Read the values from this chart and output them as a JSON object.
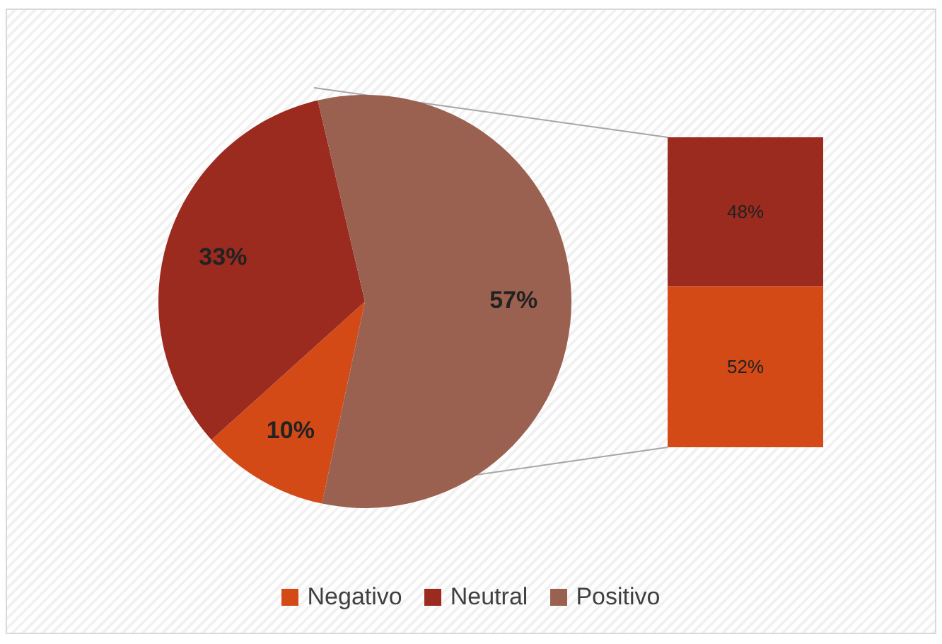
{
  "chart_data": [
    {
      "type": "pie",
      "categories": [
        "Negativo",
        "Neutral",
        "Positivo"
      ],
      "values": [
        10,
        33,
        57
      ],
      "colors": [
        "#d34a17",
        "#9b2a1f",
        "#9a6150"
      ],
      "value_labels": [
        "10%",
        "33%",
        "57%"
      ],
      "legend": "bottom"
    },
    {
      "type": "bar",
      "categories": [
        null
      ],
      "stacked": true,
      "series": [
        {
          "color": "#d34a17",
          "values": [
            52
          ],
          "value_labels": [
            "52%"
          ]
        },
        {
          "color": "#9b2a1f",
          "values": [
            48
          ],
          "value_labels": [
            "48%"
          ]
        }
      ]
    }
  ]
}
